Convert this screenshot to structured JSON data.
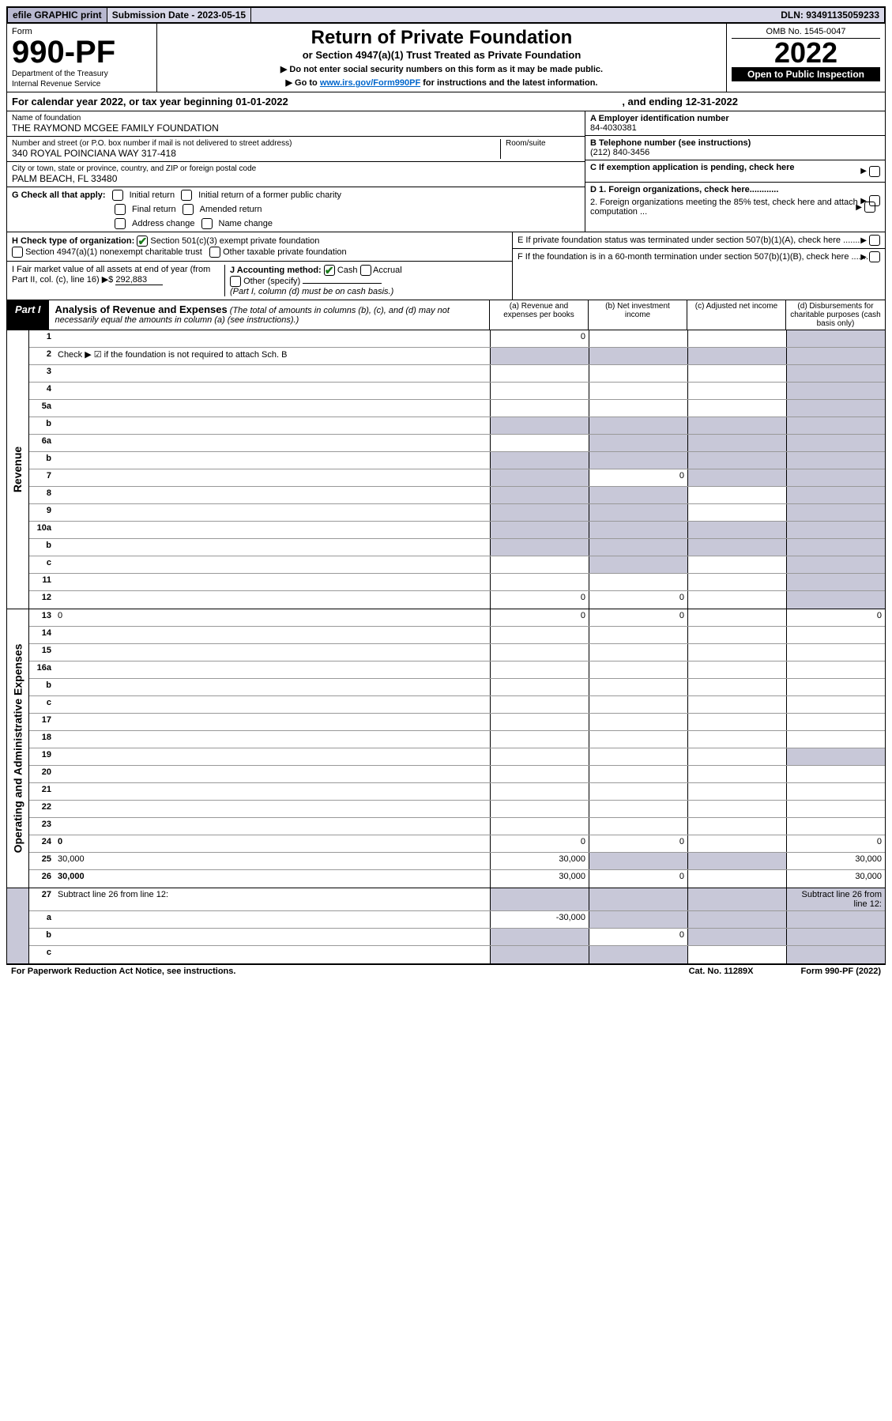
{
  "topbar": {
    "efile": "efile GRAPHIC print",
    "sub_label": "Submission Date - 2023-05-15",
    "dln": "DLN: 93491135059233"
  },
  "header": {
    "form_label": "Form",
    "form_num": "990-PF",
    "dept1": "Department of the Treasury",
    "dept2": "Internal Revenue Service",
    "title": "Return of Private Foundation",
    "subtitle": "or Section 4947(a)(1) Trust Treated as Private Foundation",
    "instr1": "▶ Do not enter social security numbers on this form as it may be made public.",
    "instr2_pre": "▶ Go to ",
    "instr2_link": "www.irs.gov/Form990PF",
    "instr2_post": " for instructions and the latest information.",
    "omb": "OMB No. 1545-0047",
    "year": "2022",
    "open_pub": "Open to Public Inspection"
  },
  "cal_year": {
    "begin": "For calendar year 2022, or tax year beginning 01-01-2022",
    "end": ", and ending 12-31-2022"
  },
  "info": {
    "name_label": "Name of foundation",
    "name": "THE RAYMOND MCGEE FAMILY FOUNDATION",
    "addr_label": "Number and street (or P.O. box number if mail is not delivered to street address)",
    "addr": "340 ROYAL POINCIANA WAY 317-418",
    "room_label": "Room/suite",
    "city_label": "City or town, state or province, country, and ZIP or foreign postal code",
    "city": "PALM BEACH, FL  33480",
    "a_label": "A Employer identification number",
    "a_val": "84-4030381",
    "b_label": "B Telephone number (see instructions)",
    "b_val": "(212) 840-3456",
    "c_label": "C If exemption application is pending, check here"
  },
  "g": {
    "label": "G Check all that apply:",
    "opts": [
      "Initial return",
      "Initial return of a former public charity",
      "Final return",
      "Amended return",
      "Address change",
      "Name change"
    ]
  },
  "h": {
    "label": "H Check type of organization:",
    "opt1": "Section 501(c)(3) exempt private foundation",
    "opt2": "Section 4947(a)(1) nonexempt charitable trust",
    "opt3": "Other taxable private foundation"
  },
  "i": {
    "label": "I Fair market value of all assets at end of year (from Part II, col. (c), line 16)",
    "arrow": "▶$",
    "val": "292,883"
  },
  "j": {
    "label": "J Accounting method:",
    "cash": "Cash",
    "accrual": "Accrual",
    "other": "Other (specify)",
    "note": "(Part I, column (d) must be on cash basis.)"
  },
  "d": {
    "d1": "D 1. Foreign organizations, check here............",
    "d2": "2. Foreign organizations meeting the 85% test, check here and attach computation ..."
  },
  "e": {
    "label": "E  If private foundation status was terminated under section 507(b)(1)(A), check here ......."
  },
  "f": {
    "label": "F  If the foundation is in a 60-month termination under section 507(b)(1)(B), check here ......."
  },
  "part1": {
    "tag": "Part I",
    "title": "Analysis of Revenue and Expenses",
    "note": "(The total of amounts in columns (b), (c), and (d) may not necessarily equal the amounts in column (a) (see instructions).)",
    "cols": {
      "a": "(a)  Revenue and expenses per books",
      "b": "(b)  Net investment income",
      "c": "(c)  Adjusted net income",
      "d": "(d)  Disbursements for charitable purposes (cash basis only)"
    }
  },
  "sections": {
    "revenue": "Revenue",
    "expenses": "Operating and Administrative Expenses"
  },
  "rows_rev": [
    {
      "n": "1",
      "d": "",
      "a": "0",
      "b": "",
      "c": "",
      "sc": false,
      "sd": true
    },
    {
      "n": "2",
      "d": "Check ▶ ☑ if the foundation is not required to attach Sch. B",
      "blank": true
    },
    {
      "n": "3",
      "d": "",
      "a": "",
      "b": "",
      "c": "",
      "sd": true
    },
    {
      "n": "4",
      "d": "",
      "a": "",
      "b": "",
      "c": "",
      "sd": true
    },
    {
      "n": "5a",
      "d": "",
      "a": "",
      "b": "",
      "c": "",
      "sd": true
    },
    {
      "n": "b",
      "d": "",
      "a": "",
      "b": "",
      "c": "",
      "sa": true,
      "sb": true,
      "sc": true,
      "sd": true
    },
    {
      "n": "6a",
      "d": "",
      "a": "",
      "b": "",
      "c": "",
      "sb": true,
      "sc": true,
      "sd": true
    },
    {
      "n": "b",
      "d": "",
      "a": "",
      "b": "",
      "c": "",
      "sa": true,
      "sb": true,
      "sc": true,
      "sd": true
    },
    {
      "n": "7",
      "d": "",
      "a": "",
      "b": "0",
      "c": "",
      "sa": true,
      "sc": true,
      "sd": true
    },
    {
      "n": "8",
      "d": "",
      "a": "",
      "b": "",
      "c": "",
      "sa": true,
      "sb": true,
      "sd": true
    },
    {
      "n": "9",
      "d": "",
      "a": "",
      "b": "",
      "c": "",
      "sa": true,
      "sb": true,
      "sd": true
    },
    {
      "n": "10a",
      "d": "",
      "a": "",
      "b": "",
      "c": "",
      "sa": true,
      "sb": true,
      "sc": true,
      "sd": true
    },
    {
      "n": "b",
      "d": "",
      "a": "",
      "b": "",
      "c": "",
      "sa": true,
      "sb": true,
      "sc": true,
      "sd": true
    },
    {
      "n": "c",
      "d": "",
      "a": "",
      "b": "",
      "c": "",
      "sb": true,
      "sd": true
    },
    {
      "n": "11",
      "d": "",
      "a": "",
      "b": "",
      "c": "",
      "sd": true
    },
    {
      "n": "12",
      "d": "",
      "a": "0",
      "b": "0",
      "c": "",
      "bold": true,
      "sd": true
    }
  ],
  "rows_exp": [
    {
      "n": "13",
      "d": "0",
      "a": "0",
      "b": "0",
      "c": ""
    },
    {
      "n": "14",
      "d": "",
      "a": "",
      "b": "",
      "c": ""
    },
    {
      "n": "15",
      "d": "",
      "a": "",
      "b": "",
      "c": ""
    },
    {
      "n": "16a",
      "d": "",
      "a": "",
      "b": "",
      "c": ""
    },
    {
      "n": "b",
      "d": "",
      "a": "",
      "b": "",
      "c": ""
    },
    {
      "n": "c",
      "d": "",
      "a": "",
      "b": "",
      "c": ""
    },
    {
      "n": "17",
      "d": "",
      "a": "",
      "b": "",
      "c": ""
    },
    {
      "n": "18",
      "d": "",
      "a": "",
      "b": "",
      "c": ""
    },
    {
      "n": "19",
      "d": "",
      "a": "",
      "b": "",
      "c": "",
      "sd": true
    },
    {
      "n": "20",
      "d": "",
      "a": "",
      "b": "",
      "c": ""
    },
    {
      "n": "21",
      "d": "",
      "a": "",
      "b": "",
      "c": ""
    },
    {
      "n": "22",
      "d": "",
      "a": "",
      "b": "",
      "c": ""
    },
    {
      "n": "23",
      "d": "",
      "a": "",
      "b": "",
      "c": ""
    },
    {
      "n": "24",
      "d": "0",
      "a": "0",
      "b": "0",
      "c": "",
      "bold": true
    },
    {
      "n": "25",
      "d": "30,000",
      "a": "30,000",
      "b": "",
      "c": "",
      "sb": true,
      "sc": true
    },
    {
      "n": "26",
      "d": "30,000",
      "a": "30,000",
      "b": "0",
      "c": "",
      "bold": true
    }
  ],
  "rows_bot": [
    {
      "n": "27",
      "d": "Subtract line 26 from line 12:",
      "sa": true,
      "sb": true,
      "sc": true,
      "sd": true
    },
    {
      "n": "a",
      "d": "",
      "a": "-30,000",
      "b": "",
      "c": "",
      "bold": true,
      "sb": true,
      "sc": true,
      "sd": true
    },
    {
      "n": "b",
      "d": "",
      "a": "",
      "b": "0",
      "c": "",
      "bold": true,
      "sa": true,
      "sc": true,
      "sd": true
    },
    {
      "n": "c",
      "d": "",
      "a": "",
      "b": "",
      "c": "",
      "bold": true,
      "sa": true,
      "sb": true,
      "sd": true
    }
  ],
  "footer": {
    "left": "For Paperwork Reduction Act Notice, see instructions.",
    "mid": "Cat. No. 11289X",
    "right": "Form 990-PF (2022)"
  }
}
